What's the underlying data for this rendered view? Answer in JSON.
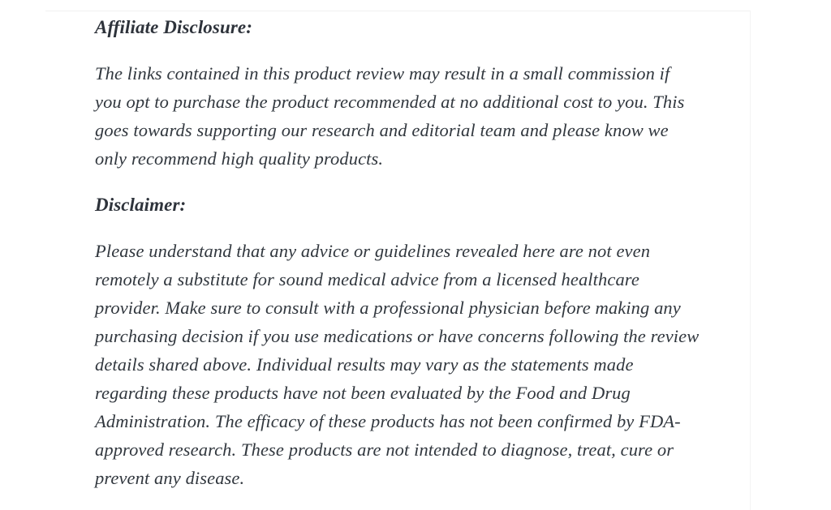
{
  "page": {
    "affiliate": {
      "heading": "Affiliate Disclosure:",
      "paragraph_lines": [
        "The links contained in this product review may result in a small commission if",
        "you opt to purchase the product recommended at no additional cost to you. This",
        "goes towards supporting our research and editorial team and please know we",
        "only recommend high quality products."
      ]
    },
    "disclaimer": {
      "heading": "Disclaimer:",
      "paragraph_lines": [
        "Please understand that any advice or guidelines revealed here are not even",
        "remotely a substitute for sound medical advice from a licensed healthcare",
        "provider. Make sure to consult with a professional physician before making any",
        "purchasing decision if you use medications or have concerns following the review",
        "details shared above. Individual results may vary as the statements made",
        "regarding these products have not been evaluated by the Food and Drug",
        "Administration. The efficacy of these products has not been confirmed by FDA-",
        "approved research. These products are not intended to diagnose, treat, cure or",
        "prevent any disease."
      ]
    },
    "colors": {
      "heading_text": "#2e333b",
      "body_text": "#32383f",
      "background": "#ffffff"
    }
  }
}
